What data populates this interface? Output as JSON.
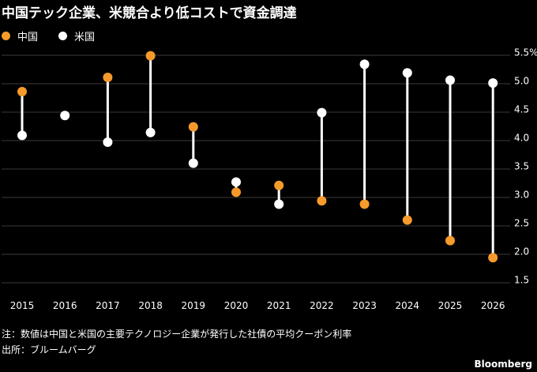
{
  "title": "中国テック企業、米競合より低コストで資金調達",
  "footnote": "注：数値は中国と米国の主要テクノロジー企業が発行した社債の平均クーポン利率",
  "source": "出所：ブルームバーグ",
  "brand": "Bloomberg",
  "colors": {
    "china": "#f59a2b",
    "us": "#ffffff",
    "connector": "#ffffff",
    "grid": "#3a3a3a"
  },
  "chart_data": {
    "type": "scatter",
    "title": "中国テック企業、米競合より低コストで資金調達",
    "categories": [
      "2015",
      "2016",
      "2017",
      "2018",
      "2019",
      "2020",
      "2021",
      "2022",
      "2023",
      "2024",
      "2025",
      "2026"
    ],
    "series": [
      {
        "name": "中国",
        "values": [
          4.82,
          4.4,
          5.07,
          5.45,
          4.2,
          3.05,
          3.17,
          2.9,
          2.84,
          2.56,
          2.2,
          1.9
        ]
      },
      {
        "name": "米国",
        "values": [
          4.05,
          4.4,
          3.93,
          4.1,
          3.56,
          3.23,
          2.84,
          4.45,
          5.3,
          5.15,
          5.02,
          4.97
        ]
      }
    ],
    "ylim": [
      1.5,
      5.5
    ],
    "yticks": [
      "1.5",
      "2.0",
      "2.5",
      "3.0",
      "3.5",
      "4.0",
      "4.5",
      "5.0",
      "5.5%"
    ],
    "grid": true,
    "legend_position": "top-left"
  }
}
